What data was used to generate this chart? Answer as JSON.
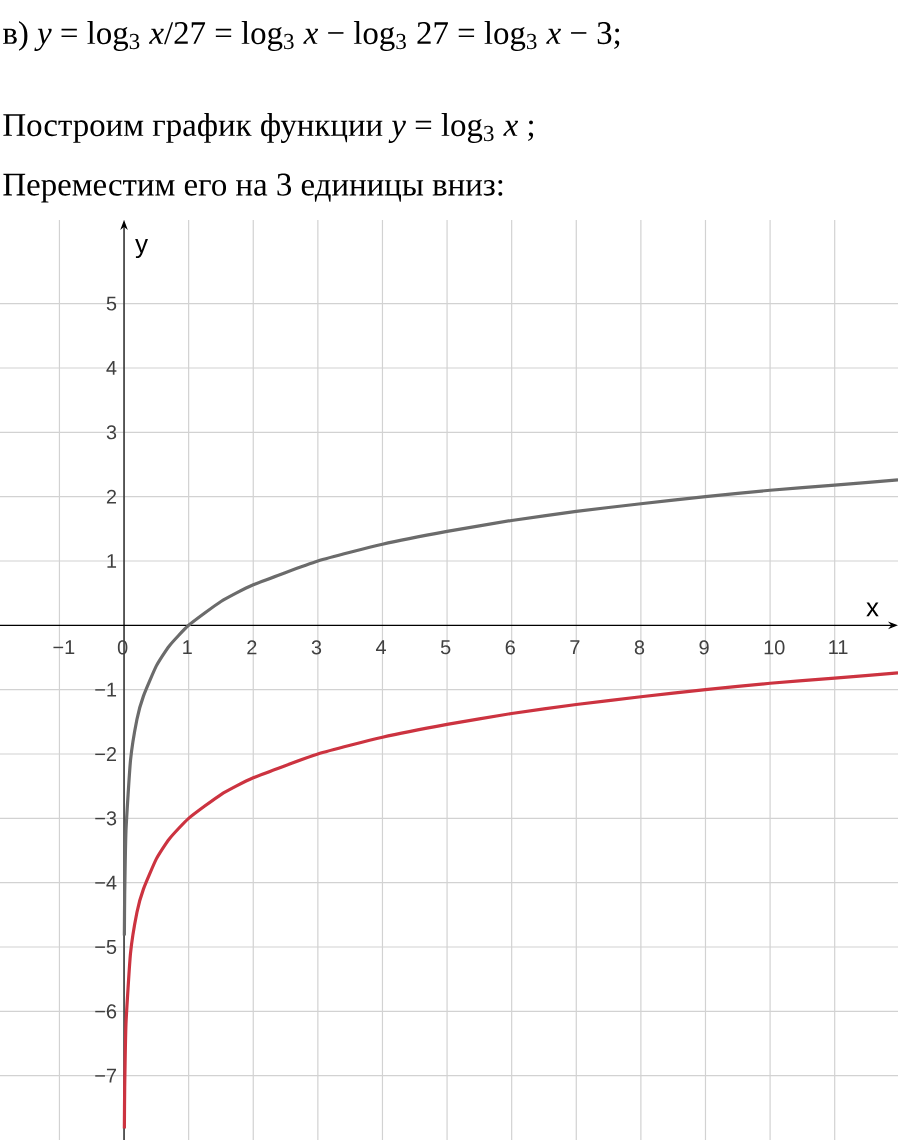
{
  "chart_data": {
    "type": "line",
    "title": "в) *y* = log$_{3}$ *x*/27 = log$_{3}$ *x* − log$_{3}$ 27 = log$_{3}$ *x* − 3;",
    "subtitle": "Построим график функции *y* = log$_{3}$ *x* ;",
    "annotations": [
      "Переместим его на 3 единицы вниз:"
    ],
    "xlabel": "x",
    "ylabel": "y",
    "xlim": [
      -1.92,
      11.98
    ],
    "ylim": [
      -8.0,
      6.3
    ],
    "xticks": [
      {
        "value": -1,
        "label": "−1"
      },
      0,
      1,
      2,
      3,
      4,
      5,
      6,
      7,
      8,
      9,
      10,
      11
    ],
    "yticks": [
      {
        "value": -7,
        "label": "−7"
      },
      {
        "value": -6,
        "label": "−6"
      },
      {
        "value": -5,
        "label": "−5"
      },
      {
        "value": -4,
        "label": "−4"
      },
      {
        "value": -3,
        "label": "−3"
      },
      {
        "value": -2,
        "label": "−2"
      },
      {
        "value": -1,
        "label": "−1"
      },
      1,
      2,
      3,
      4,
      5
    ],
    "grid": true,
    "line_style": "solid",
    "series": [
      {
        "color": "#6b6b6b",
        "x": [
          0.005,
          0.01,
          0.03,
          0.1,
          0.2,
          0.3,
          0.5,
          0.7,
          1,
          1.5,
          2,
          3,
          4,
          5,
          6,
          7,
          8,
          9,
          10,
          11,
          11.98
        ],
        "values": [
          -4.82,
          -4.19,
          -3.19,
          -2.1,
          -1.46,
          -1.1,
          -0.63,
          -0.32,
          0,
          0.37,
          0.63,
          1,
          1.26,
          1.46,
          1.63,
          1.77,
          1.89,
          2,
          2.1,
          2.18,
          2.26
        ]
      },
      {
        "color": "#cc3340",
        "x": [
          0.005,
          0.01,
          0.03,
          0.1,
          0.2,
          0.3,
          0.5,
          0.7,
          1,
          1.5,
          2,
          3,
          4,
          5,
          6,
          7,
          8,
          9,
          10,
          11,
          11.98
        ],
        "values": [
          -7.82,
          -7.19,
          -6.19,
          -5.1,
          -4.46,
          -4.1,
          -3.63,
          -3.32,
          -3,
          -2.63,
          -2.37,
          -2,
          -1.74,
          -1.54,
          -1.37,
          -1.23,
          -1.11,
          -1,
          -0.9,
          -0.82,
          -0.74
        ]
      }
    ]
  }
}
